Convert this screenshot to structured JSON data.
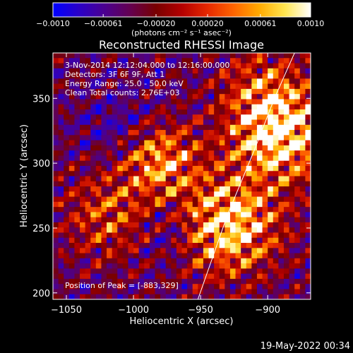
{
  "chart_data": {
    "type": "heatmap",
    "title": "Reconstructed RHESSI Image",
    "xlabel": "Heliocentric X (arcsec)",
    "ylabel": "Heliocentric Y (arcsec)",
    "xlim": [
      -1060,
      -868
    ],
    "ylim": [
      195,
      385
    ],
    "x_ticks": [
      -1050,
      -1000,
      -950,
      -900
    ],
    "y_ticks": [
      200,
      250,
      300,
      350
    ],
    "x_tick_labels": [
      "−1050",
      "−1000",
      "−950",
      "−900"
    ],
    "y_tick_labels": [
      "200",
      "250",
      "300",
      "350"
    ],
    "colorbar": {
      "range": [
        -0.001,
        0.001
      ],
      "ticks": [
        -0.001,
        -0.00061,
        -0.0002,
        0.0002,
        0.00061,
        0.001
      ],
      "tick_labels": [
        "−0.0010",
        "−0.00061",
        "−0.00020",
        "0.00020",
        "0.00061",
        "0.0010"
      ],
      "unit_label": "(photons cm⁻² s⁻¹ asec⁻²)",
      "colors": [
        "#0000ff",
        "#2a00c8",
        "#4b0090",
        "#640050",
        "#780000",
        "#b40000",
        "#e62800",
        "#ff6400",
        "#ffaa00",
        "#ffe650",
        "#ffffff"
      ]
    },
    "annotations": [
      "3-Nov-2014 12:12:04.000 to 12:16:00.000",
      "Detectors: 3F 6F 9F, Att 1",
      "Energy Range: 25.0 - 50.0 keV",
      "Clean     Total counts: 2.76E+03"
    ],
    "peak_label": "Position of Peak = [-883,329]",
    "limb": [
      [
        -952,
        195
      ],
      [
        -930,
        260
      ],
      [
        -910,
        310
      ],
      [
        -895,
        350
      ],
      [
        -880,
        385
      ]
    ]
  },
  "footer": {
    "date": "19-May-2022 00:34"
  }
}
